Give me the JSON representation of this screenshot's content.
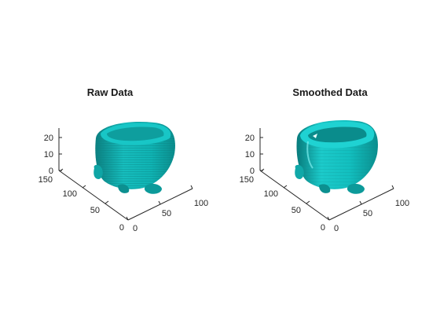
{
  "figures": [
    {
      "title": "Raw Data",
      "z_ticks": [
        "0",
        "10",
        "20"
      ],
      "y_ticks": [
        "0",
        "50",
        "100",
        "150"
      ],
      "x_ticks": [
        "0",
        "50",
        "100"
      ],
      "surface_color": "#00bcbc",
      "smoothed": false
    },
    {
      "title": "Smoothed Data",
      "z_ticks": [
        "0",
        "10",
        "20"
      ],
      "y_ticks": [
        "0",
        "50",
        "100",
        "150"
      ],
      "x_ticks": [
        "0",
        "50",
        "100"
      ],
      "surface_color": "#00c4c4",
      "smoothed": true
    }
  ]
}
